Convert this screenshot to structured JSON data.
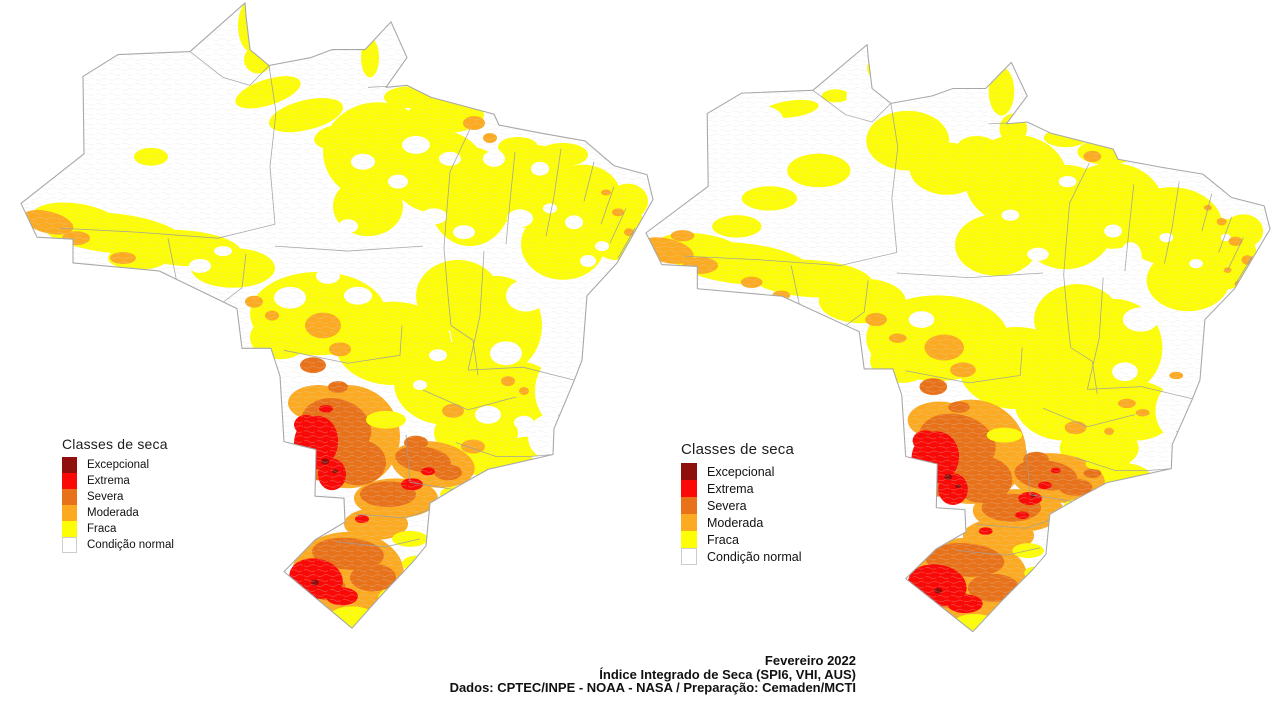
{
  "page": {
    "background": "#ffffff"
  },
  "legend": {
    "title": "Classes de seca",
    "items": [
      {
        "id": "excepcional",
        "label": "Excepcional",
        "color": "#8e0f0b"
      },
      {
        "id": "extrema",
        "label": "Extrema",
        "color": "#f90a06"
      },
      {
        "id": "severa",
        "label": "Severa",
        "color": "#e8721a"
      },
      {
        "id": "moderada",
        "label": "Moderada",
        "color": "#fbaa21"
      },
      {
        "id": "fraca",
        "label": "Fraca",
        "color": "#fdfd05"
      },
      {
        "id": "normal",
        "label": "Condição normal",
        "color": "#ffffff"
      }
    ]
  },
  "maps": [
    {
      "id": "drought-map-left"
    },
    {
      "id": "drought-map-right"
    }
  ],
  "map_style": {
    "outline_color": "#a8a8a8",
    "state_border_color": "#9e9e9e",
    "texture_color": "#d9d9d9",
    "base_fill": "#ffffff"
  },
  "caption": {
    "line1": "Fevereiro 2022",
    "line2": "Índice Integrado de Seca (SPI6, VHI, AUS)",
    "line3": "Dados: CPTEC/INPE - NOAA - NASA / Preparação: Cemaden/MCTI"
  }
}
